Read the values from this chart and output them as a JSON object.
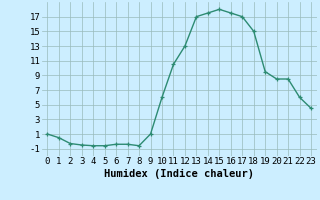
{
  "x": [
    0,
    1,
    2,
    3,
    4,
    5,
    6,
    7,
    8,
    9,
    10,
    11,
    12,
    13,
    14,
    15,
    16,
    17,
    18,
    19,
    20,
    21,
    22,
    23
  ],
  "y": [
    1,
    0.5,
    -0.3,
    -0.5,
    -0.6,
    -0.6,
    -0.4,
    -0.4,
    -0.6,
    1.0,
    6.0,
    10.5,
    13.0,
    17.0,
    17.5,
    18.0,
    17.5,
    17.0,
    15.0,
    9.5,
    8.5,
    8.5,
    6.0,
    4.5
  ],
  "line_color": "#2d8b72",
  "marker": "+",
  "markersize": 3.5,
  "linewidth": 1.0,
  "xlabel": "Humidex (Indice chaleur)",
  "xlim": [
    -0.5,
    23.5
  ],
  "ylim": [
    -2,
    19
  ],
  "xticks": [
    0,
    1,
    2,
    3,
    4,
    5,
    6,
    7,
    8,
    9,
    10,
    11,
    12,
    13,
    14,
    15,
    16,
    17,
    18,
    19,
    20,
    21,
    22,
    23
  ],
  "yticks": [
    -1,
    1,
    3,
    5,
    7,
    9,
    11,
    13,
    15,
    17
  ],
  "bg_color": "#cceeff",
  "grid_color": "#99bbbb",
  "xlabel_fontsize": 7.5,
  "tick_fontsize": 6.5
}
